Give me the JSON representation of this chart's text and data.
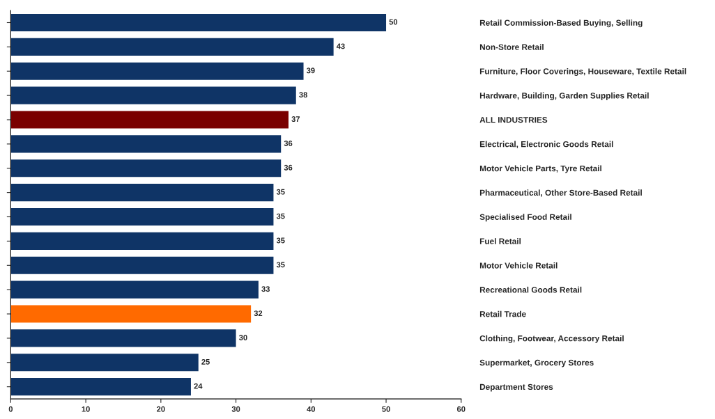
{
  "chart_data": {
    "type": "bar",
    "orientation": "horizontal",
    "categories": [
      "Retail Commission-Based Buying, Selling",
      "Non-Store Retail",
      "Furniture, Floor Coverings, Houseware, Textile Retail",
      "Hardware, Building, Garden Supplies Retail",
      "ALL INDUSTRIES",
      "Electrical, Electronic Goods Retail",
      "Motor Vehicle Parts, Tyre Retail",
      "Pharmaceutical, Other Store-Based Retail",
      "Specialised Food Retail",
      "Fuel Retail",
      "Motor Vehicle Retail",
      "Recreational Goods Retail",
      "Retail Trade",
      "Clothing, Footwear, Accessory Retail",
      "Supermarket, Grocery Stores",
      "Department Stores"
    ],
    "values": [
      50,
      43,
      39,
      38,
      37,
      36,
      36,
      35,
      35,
      35,
      35,
      33,
      32,
      30,
      25,
      24
    ],
    "colors": [
      "#0f3466",
      "#0f3466",
      "#0f3466",
      "#0f3466",
      "#7a0000",
      "#0f3466",
      "#0f3466",
      "#0f3466",
      "#0f3466",
      "#0f3466",
      "#0f3466",
      "#0f3466",
      "#ff6a00",
      "#0f3466",
      "#0f3466",
      "#0f3466"
    ],
    "xlim": [
      0,
      60
    ],
    "xticks": [
      0,
      10,
      20,
      30,
      40,
      50,
      60
    ],
    "data_labels": true,
    "grid": false,
    "legend": false
  }
}
